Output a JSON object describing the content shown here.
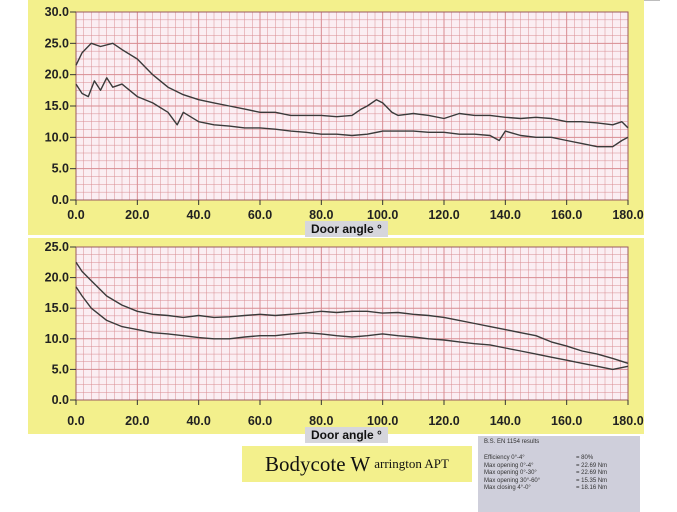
{
  "chart_data": [
    {
      "type": "line",
      "title": "",
      "xlabel": "Door angle °",
      "ylabel": "",
      "xlim": [
        0,
        180
      ],
      "ylim": [
        0,
        30
      ],
      "xticks": [
        "0.0",
        "20.0",
        "40.0",
        "60.0",
        "80.0",
        "100.0",
        "120.0",
        "140.0",
        "160.0",
        "180.0"
      ],
      "yticks": [
        "0.0",
        "5.0",
        "10.0",
        "15.0",
        "20.0",
        "25.0",
        "30.0"
      ],
      "grid": true,
      "series": [
        {
          "x": [
            0,
            2,
            5,
            8,
            12,
            15,
            20,
            25,
            30,
            35,
            40,
            45,
            50,
            55,
            60,
            65,
            70,
            75,
            80,
            85,
            90,
            93,
            95,
            98,
            100,
            103,
            105,
            110,
            115,
            120,
            125,
            130,
            135,
            140,
            145,
            150,
            155,
            160,
            165,
            170,
            175,
            178,
            180
          ],
          "y": [
            21.5,
            23.5,
            25,
            24.5,
            25,
            24,
            22.5,
            20,
            18,
            16.8,
            16,
            15.5,
            15,
            14.5,
            14,
            14,
            13.5,
            13.5,
            13.5,
            13.3,
            13.5,
            14.5,
            15,
            16,
            15.5,
            14,
            13.5,
            13.8,
            13.5,
            13,
            13.8,
            13.5,
            13.5,
            13.2,
            13,
            13.2,
            13,
            12.5,
            12.5,
            12.3,
            12,
            12.5,
            11.5
          ]
        },
        {
          "x": [
            0,
            2,
            4,
            6,
            8,
            10,
            12,
            15,
            20,
            25,
            30,
            33,
            35,
            40,
            45,
            50,
            55,
            60,
            65,
            70,
            75,
            80,
            85,
            90,
            95,
            100,
            105,
            110,
            115,
            120,
            125,
            130,
            135,
            138,
            140,
            145,
            150,
            155,
            160,
            165,
            170,
            175,
            178,
            180
          ],
          "y": [
            18.5,
            17,
            16.5,
            19,
            17.5,
            19.5,
            18,
            18.5,
            16.5,
            15.5,
            14,
            12,
            14,
            12.5,
            12,
            11.8,
            11.5,
            11.5,
            11.3,
            11,
            10.8,
            10.5,
            10.5,
            10.3,
            10.5,
            11,
            11,
            11,
            10.8,
            10.8,
            10.5,
            10.5,
            10.3,
            9.5,
            11,
            10.3,
            10,
            10,
            9.5,
            9,
            8.5,
            8.5,
            9.5,
            10
          ]
        }
      ]
    },
    {
      "type": "line",
      "title": "",
      "xlabel": "Door angle °",
      "ylabel": "",
      "xlim": [
        0,
        180
      ],
      "ylim": [
        0,
        25
      ],
      "xticks": [
        "0.0",
        "20.0",
        "40.0",
        "60.0",
        "80.0",
        "100.0",
        "120.0",
        "140.0",
        "160.0",
        "180.0"
      ],
      "yticks": [
        "0.0",
        "5.0",
        "10.0",
        "15.0",
        "20.0",
        "25.0"
      ],
      "grid": true,
      "series": [
        {
          "x": [
            0,
            2,
            5,
            10,
            15,
            20,
            25,
            30,
            35,
            40,
            45,
            50,
            55,
            60,
            65,
            70,
            75,
            80,
            85,
            90,
            95,
            100,
            105,
            110,
            115,
            120,
            125,
            130,
            135,
            140,
            145,
            150,
            155,
            160,
            165,
            170,
            175,
            180
          ],
          "y": [
            22.5,
            21,
            19.5,
            17,
            15.5,
            14.5,
            14,
            13.8,
            13.5,
            13.8,
            13.5,
            13.6,
            13.8,
            14,
            13.8,
            14,
            14.2,
            14.5,
            14.3,
            14.5,
            14.5,
            14.2,
            14.3,
            14,
            13.8,
            13.5,
            13,
            12.5,
            12,
            11.5,
            11,
            10.5,
            9.5,
            8.8,
            8,
            7.5,
            6.8,
            6
          ]
        },
        {
          "x": [
            0,
            2,
            5,
            10,
            15,
            20,
            25,
            30,
            35,
            40,
            45,
            50,
            55,
            60,
            65,
            70,
            75,
            80,
            85,
            90,
            95,
            100,
            105,
            110,
            115,
            120,
            125,
            130,
            135,
            140,
            145,
            150,
            155,
            160,
            165,
            170,
            175,
            180
          ],
          "y": [
            18.5,
            17,
            15,
            13,
            12,
            11.5,
            11,
            10.8,
            10.5,
            10.2,
            10,
            10,
            10.3,
            10.5,
            10.5,
            10.8,
            11,
            10.8,
            10.5,
            10.3,
            10.5,
            10.8,
            10.5,
            10.3,
            10,
            9.8,
            9.5,
            9.2,
            9,
            8.5,
            8,
            7.5,
            7,
            6.5,
            6,
            5.5,
            5,
            5.5
          ]
        }
      ]
    }
  ],
  "brand": {
    "main": "Bodycote W",
    "rest": "arrington APT"
  },
  "results": {
    "title": "B.S. EN 1154 results",
    "rows": [
      {
        "label": "Efficiency 0°-4°",
        "value": "= 80%"
      },
      {
        "label": "Max opening 0°-4°",
        "value": "= 22.69 Nm"
      },
      {
        "label": "Max opening 0°-30°",
        "value": "= 22.69 Nm"
      },
      {
        "label": "Max opening 30°-60°",
        "value": "= 15.35 Nm"
      },
      {
        "label": "Max closing 4°-0°",
        "value": "= 18.16 Nm"
      }
    ]
  },
  "colors": {
    "panel_bg": "#f3f08c",
    "plot_bg": "#fbeef3",
    "grid": "#d88c92",
    "series": "#3a3a3a"
  }
}
